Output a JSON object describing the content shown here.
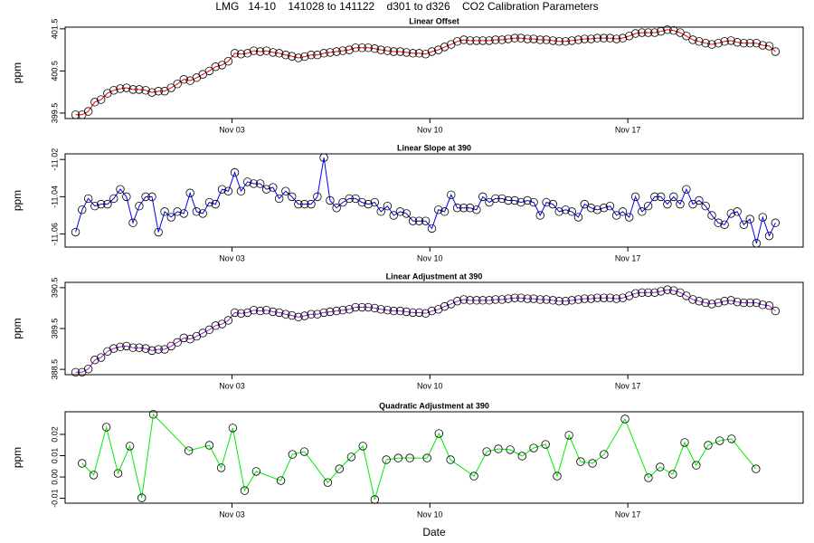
{
  "title": "LMG   14-10    141028 to 141122    d301 to d326    CO2 Calibration Parameters",
  "chart_data": [
    {
      "type": "line",
      "title": "Linear Offset",
      "y_label": "ppm",
      "color": "#ff0000",
      "xlim": [
        301.1,
        327.2
      ],
      "xticks": [
        {
          "value": 307,
          "label": "Nov 03"
        },
        {
          "value": 314,
          "label": "Nov 10"
        },
        {
          "value": 321,
          "label": "Nov 17"
        }
      ],
      "ylim": [
        399.37,
        401.54
      ],
      "yticks": [
        399.5,
        400.5,
        401.5
      ],
      "x": [
        301.47,
        301.7,
        301.92,
        302.15,
        302.37,
        302.6,
        302.82,
        303.05,
        303.27,
        303.5,
        303.72,
        303.95,
        304.17,
        304.4,
        304.62,
        304.85,
        305.07,
        305.3,
        305.52,
        305.75,
        305.97,
        306.2,
        306.42,
        306.65,
        306.87,
        307.1,
        307.32,
        307.55,
        307.77,
        308.0,
        308.22,
        308.45,
        308.67,
        308.9,
        309.12,
        309.35,
        309.57,
        309.8,
        310.02,
        310.25,
        310.47,
        310.7,
        310.92,
        311.15,
        311.37,
        311.6,
        311.82,
        312.05,
        312.27,
        312.5,
        312.72,
        312.95,
        313.17,
        313.4,
        313.62,
        313.85,
        314.07,
        314.3,
        314.52,
        314.75,
        314.97,
        315.2,
        315.42,
        315.65,
        315.87,
        316.1,
        316.32,
        316.55,
        316.77,
        317.0,
        317.22,
        317.45,
        317.67,
        317.9,
        318.12,
        318.35,
        318.57,
        318.8,
        319.02,
        319.25,
        319.47,
        319.7,
        319.92,
        320.15,
        320.37,
        320.6,
        320.82,
        321.05,
        321.27,
        321.5,
        321.72,
        321.95,
        322.17,
        322.4,
        322.62,
        322.85,
        323.07,
        323.3,
        323.52,
        323.75,
        323.97,
        324.2,
        324.42,
        324.65,
        324.87,
        325.1,
        325.32,
        325.55,
        325.77,
        326.0,
        326.22
      ],
      "values": [
        399.46,
        399.46,
        399.54,
        399.76,
        399.82,
        399.97,
        400.04,
        400.08,
        400.1,
        400.06,
        400.06,
        400.04,
        399.99,
        400.02,
        400.02,
        400.1,
        400.19,
        400.3,
        400.27,
        400.34,
        400.42,
        400.5,
        400.6,
        400.64,
        400.73,
        400.92,
        400.9,
        400.92,
        400.98,
        400.96,
        400.98,
        400.94,
        400.92,
        400.88,
        400.85,
        400.81,
        400.84,
        400.88,
        400.88,
        400.92,
        400.94,
        400.96,
        400.98,
        401.0,
        401.05,
        401.05,
        401.05,
        401.03,
        401.0,
        400.98,
        400.96,
        400.96,
        400.94,
        400.92,
        400.92,
        400.9,
        400.96,
        401.0,
        401.07,
        401.13,
        401.2,
        401.24,
        401.22,
        401.22,
        401.22,
        401.22,
        401.24,
        401.24,
        401.26,
        401.28,
        401.28,
        401.26,
        401.26,
        401.24,
        401.24,
        401.22,
        401.2,
        401.2,
        401.22,
        401.24,
        401.26,
        401.26,
        401.28,
        401.28,
        401.28,
        401.26,
        401.28,
        401.33,
        401.39,
        401.41,
        401.41,
        401.41,
        401.44,
        401.48,
        401.46,
        401.41,
        401.33,
        401.24,
        401.2,
        401.16,
        401.13,
        401.16,
        401.2,
        401.22,
        401.18,
        401.16,
        401.16,
        401.16,
        401.11,
        401.09,
        400.96
      ]
    },
    {
      "type": "line",
      "title": "Linear Slope at 390",
      "y_label": "ppm",
      "color": "#0000ff",
      "xlim": [
        301.1,
        327.2
      ],
      "xticks": [
        {
          "value": 307,
          "label": "Nov 03"
        },
        {
          "value": 314,
          "label": "Nov 10"
        },
        {
          "value": 321,
          "label": "Nov 17"
        }
      ],
      "ylim": [
        -11.067,
        -11.017
      ],
      "yticks": [
        -11.06,
        -11.04,
        -11.02
      ],
      "x": [
        301.47,
        301.7,
        301.92,
        302.15,
        302.37,
        302.6,
        302.82,
        303.05,
        303.27,
        303.5,
        303.72,
        303.95,
        304.17,
        304.4,
        304.62,
        304.85,
        305.07,
        305.3,
        305.52,
        305.75,
        305.97,
        306.2,
        306.42,
        306.65,
        306.87,
        307.1,
        307.32,
        307.55,
        307.77,
        308.0,
        308.22,
        308.45,
        308.67,
        308.9,
        309.12,
        309.35,
        309.57,
        309.8,
        310.02,
        310.25,
        310.47,
        310.7,
        310.92,
        311.15,
        311.37,
        311.6,
        311.82,
        312.05,
        312.27,
        312.5,
        312.72,
        312.95,
        313.17,
        313.4,
        313.62,
        313.85,
        314.07,
        314.3,
        314.52,
        314.75,
        314.97,
        315.2,
        315.42,
        315.65,
        315.87,
        316.1,
        316.32,
        316.55,
        316.77,
        317.0,
        317.22,
        317.45,
        317.67,
        317.9,
        318.12,
        318.35,
        318.57,
        318.8,
        319.02,
        319.25,
        319.47,
        319.7,
        319.92,
        320.15,
        320.37,
        320.6,
        320.82,
        321.05,
        321.27,
        321.5,
        321.72,
        321.95,
        322.17,
        322.4,
        322.62,
        322.85,
        323.07,
        323.3,
        323.52,
        323.75,
        323.97,
        324.2,
        324.42,
        324.65,
        324.87,
        325.1,
        325.32,
        325.55,
        325.77,
        326.0,
        326.22
      ],
      "values": [
        -11.059,
        -11.047,
        -11.041,
        -11.045,
        -11.044,
        -11.044,
        -11.041,
        -11.036,
        -11.04,
        -11.054,
        -11.045,
        -11.04,
        -11.04,
        -11.059,
        -11.048,
        -11.051,
        -11.048,
        -11.049,
        -11.038,
        -11.048,
        -11.049,
        -11.043,
        -11.044,
        -11.036,
        -11.037,
        -11.027,
        -11.037,
        -11.032,
        -11.033,
        -11.033,
        -11.036,
        -11.035,
        -11.041,
        -11.037,
        -11.04,
        -11.044,
        -11.044,
        -11.044,
        -11.04,
        -11.019,
        -11.042,
        -11.046,
        -11.043,
        -11.041,
        -11.041,
        -11.043,
        -11.044,
        -11.043,
        -11.048,
        -11.045,
        -11.05,
        -11.048,
        -11.049,
        -11.053,
        -11.053,
        -11.053,
        -11.057,
        -11.047,
        -11.048,
        -11.039,
        -11.046,
        -11.046,
        -11.046,
        -11.047,
        -11.04,
        -11.043,
        -11.041,
        -11.041,
        -11.042,
        -11.042,
        -11.043,
        -11.042,
        -11.043,
        -11.05,
        -11.043,
        -11.044,
        -11.048,
        -11.047,
        -11.048,
        -11.051,
        -11.044,
        -11.046,
        -11.047,
        -11.046,
        -11.045,
        -11.05,
        -11.048,
        -11.051,
        -11.04,
        -11.048,
        -11.045,
        -11.04,
        -11.04,
        -11.044,
        -11.04,
        -11.044,
        -11.036,
        -11.044,
        -11.042,
        -11.045,
        -11.05,
        -11.054,
        -11.055,
        -11.049,
        -11.048,
        -11.055,
        -11.052,
        -11.065,
        -11.051,
        -11.061,
        -11.054
      ]
    },
    {
      "type": "line",
      "title": "Linear Adjustment at 390",
      "y_label": "ppm",
      "color": "#a020f0",
      "xlim": [
        301.1,
        327.2
      ],
      "xticks": [
        {
          "value": 307,
          "label": "Nov 03"
        },
        {
          "value": 314,
          "label": "Nov 10"
        },
        {
          "value": 321,
          "label": "Nov 17"
        }
      ],
      "ylim": [
        388.37,
        390.63
      ],
      "yticks": [
        388.5,
        389.5,
        390.5
      ],
      "x": [
        301.47,
        301.7,
        301.92,
        302.15,
        302.37,
        302.6,
        302.82,
        303.05,
        303.27,
        303.5,
        303.72,
        303.95,
        304.17,
        304.4,
        304.62,
        304.85,
        305.07,
        305.3,
        305.52,
        305.75,
        305.97,
        306.2,
        306.42,
        306.65,
        306.87,
        307.1,
        307.32,
        307.55,
        307.77,
        308.0,
        308.22,
        308.45,
        308.67,
        308.9,
        309.12,
        309.35,
        309.57,
        309.8,
        310.02,
        310.25,
        310.47,
        310.7,
        310.92,
        311.15,
        311.37,
        311.6,
        311.82,
        312.05,
        312.27,
        312.5,
        312.72,
        312.95,
        313.17,
        313.4,
        313.62,
        313.85,
        314.07,
        314.3,
        314.52,
        314.75,
        314.97,
        315.2,
        315.42,
        315.65,
        315.87,
        316.1,
        316.32,
        316.55,
        316.77,
        317.0,
        317.22,
        317.45,
        317.67,
        317.9,
        318.12,
        318.35,
        318.57,
        318.8,
        319.02,
        319.25,
        319.47,
        319.7,
        319.92,
        320.15,
        320.37,
        320.6,
        320.82,
        321.05,
        321.27,
        321.5,
        321.72,
        321.95,
        322.17,
        322.4,
        322.62,
        322.85,
        323.07,
        323.3,
        323.52,
        323.75,
        323.97,
        324.2,
        324.42,
        324.65,
        324.87,
        325.1,
        325.32,
        325.55,
        325.77,
        326.0,
        326.22
      ],
      "values": [
        388.43,
        388.43,
        388.51,
        388.73,
        388.79,
        388.94,
        389.01,
        389.05,
        389.07,
        389.03,
        389.03,
        389.01,
        388.96,
        388.99,
        388.99,
        389.07,
        389.16,
        389.27,
        389.24,
        389.31,
        389.39,
        389.47,
        389.57,
        389.61,
        389.7,
        389.89,
        389.87,
        389.89,
        389.95,
        389.93,
        389.95,
        389.91,
        389.89,
        389.85,
        389.82,
        389.78,
        389.81,
        389.85,
        389.85,
        389.89,
        389.91,
        389.93,
        389.95,
        389.97,
        390.02,
        390.02,
        390.02,
        390.0,
        389.97,
        389.95,
        389.93,
        389.93,
        389.91,
        389.89,
        389.89,
        389.87,
        389.93,
        389.97,
        390.04,
        390.1,
        390.17,
        390.21,
        390.19,
        390.19,
        390.19,
        390.19,
        390.21,
        390.21,
        390.23,
        390.25,
        390.25,
        390.23,
        390.23,
        390.21,
        390.21,
        390.19,
        390.17,
        390.17,
        390.19,
        390.21,
        390.23,
        390.23,
        390.25,
        390.25,
        390.25,
        390.23,
        390.25,
        390.3,
        390.36,
        390.38,
        390.38,
        390.38,
        390.41,
        390.45,
        390.43,
        390.38,
        390.3,
        390.21,
        390.17,
        390.13,
        390.1,
        390.13,
        390.17,
        390.19,
        390.15,
        390.13,
        390.13,
        390.13,
        390.08,
        390.06,
        389.93
      ]
    },
    {
      "type": "line",
      "title": "Quadratic Adjustment at 390",
      "y_label": "ppm",
      "x_label": "Date",
      "color": "#00ee00",
      "xlim": [
        301.1,
        327.2
      ],
      "xticks": [
        {
          "value": 307,
          "label": "Nov 03"
        },
        {
          "value": 314,
          "label": "Nov 10"
        },
        {
          "value": 321,
          "label": "Nov 17"
        }
      ],
      "ylim": [
        -0.0123,
        0.0306
      ],
      "yticks": [
        -0.01,
        {
          "value": 0,
          "label": "0.00"
        },
        0.01,
        0.02
      ],
      "x": [
        301.7,
        302.11,
        302.56,
        302.97,
        303.39,
        303.81,
        304.22,
        305.47,
        306.2,
        306.62,
        307.03,
        307.45,
        307.86,
        308.73,
        309.14,
        309.56,
        310.39,
        310.8,
        311.22,
        311.63,
        312.05,
        312.46,
        312.88,
        313.29,
        313.9,
        314.32,
        314.73,
        315.56,
        316.01,
        316.42,
        316.84,
        317.26,
        317.67,
        318.09,
        318.5,
        318.92,
        319.33,
        319.75,
        320.16,
        320.9,
        321.73,
        322.14,
        322.59,
        323.01,
        323.42,
        323.84,
        324.25,
        324.67,
        325.53
      ],
      "values": [
        0.0064,
        0.0009,
        0.0234,
        0.0017,
        0.0145,
        -0.0098,
        0.0294,
        0.0123,
        0.0149,
        0.0043,
        0.023,
        -0.0064,
        0.0026,
        -0.0017,
        0.0106,
        0.0119,
        -0.0026,
        0.0038,
        0.0094,
        0.0145,
        -0.0106,
        0.0081,
        0.0089,
        0.0089,
        0.0089,
        0.0204,
        0.0081,
        0.0004,
        0.0119,
        0.0132,
        0.0128,
        0.0098,
        0.0136,
        0.0153,
        0.0004,
        0.0196,
        0.0072,
        0.0064,
        0.0106,
        0.0272,
        -0.0004,
        0.0047,
        0.0013,
        0.0162,
        0.0055,
        0.0149,
        0.017,
        0.0179,
        0.0038
      ]
    }
  ]
}
